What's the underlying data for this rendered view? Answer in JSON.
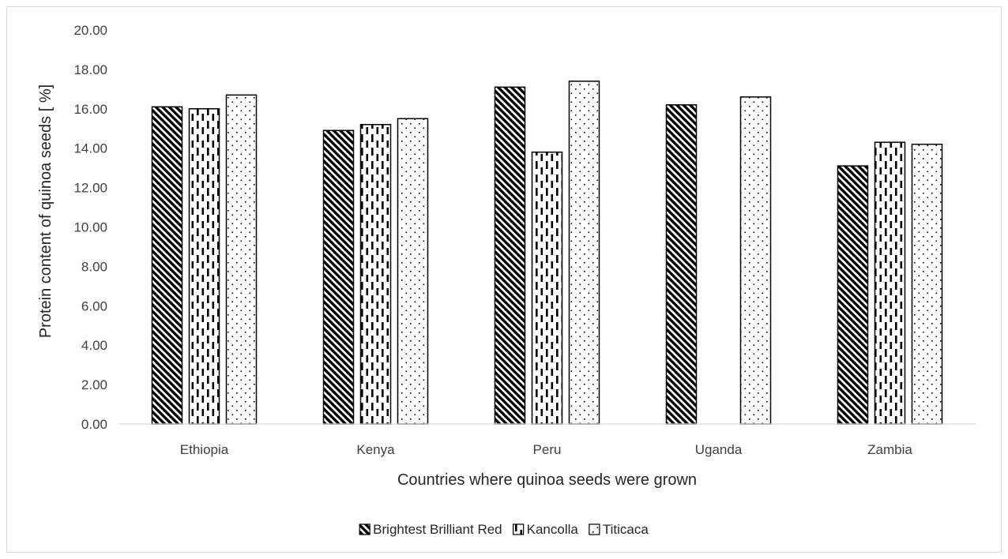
{
  "chart_data": {
    "type": "bar",
    "title": "",
    "xlabel": "Countries where quinoa seeds were grown",
    "ylabel": "Protein content of quinoa seeds [ %]",
    "categories": [
      "Ethiopia",
      "Kenya",
      "Peru",
      "Uganda",
      "Zambia"
    ],
    "series": [
      {
        "name": "Brightest Brilliant Red",
        "values": [
          16.1,
          14.9,
          17.1,
          16.2,
          13.1
        ],
        "pattern": "diagonal-hatch"
      },
      {
        "name": "Kancolla",
        "values": [
          16.0,
          15.2,
          13.8,
          null,
          14.3
        ],
        "pattern": "dashed-vertical"
      },
      {
        "name": "Titicaca",
        "values": [
          16.7,
          15.5,
          17.4,
          16.6,
          14.2
        ],
        "pattern": "dotted"
      }
    ],
    "yticks": [
      "0.00",
      "2.00",
      "4.00",
      "6.00",
      "8.00",
      "10.00",
      "12.00",
      "14.00",
      "16.00",
      "18.00",
      "20.00"
    ],
    "ylim": [
      0,
      20
    ],
    "grid": false,
    "legend_position": "bottom"
  }
}
